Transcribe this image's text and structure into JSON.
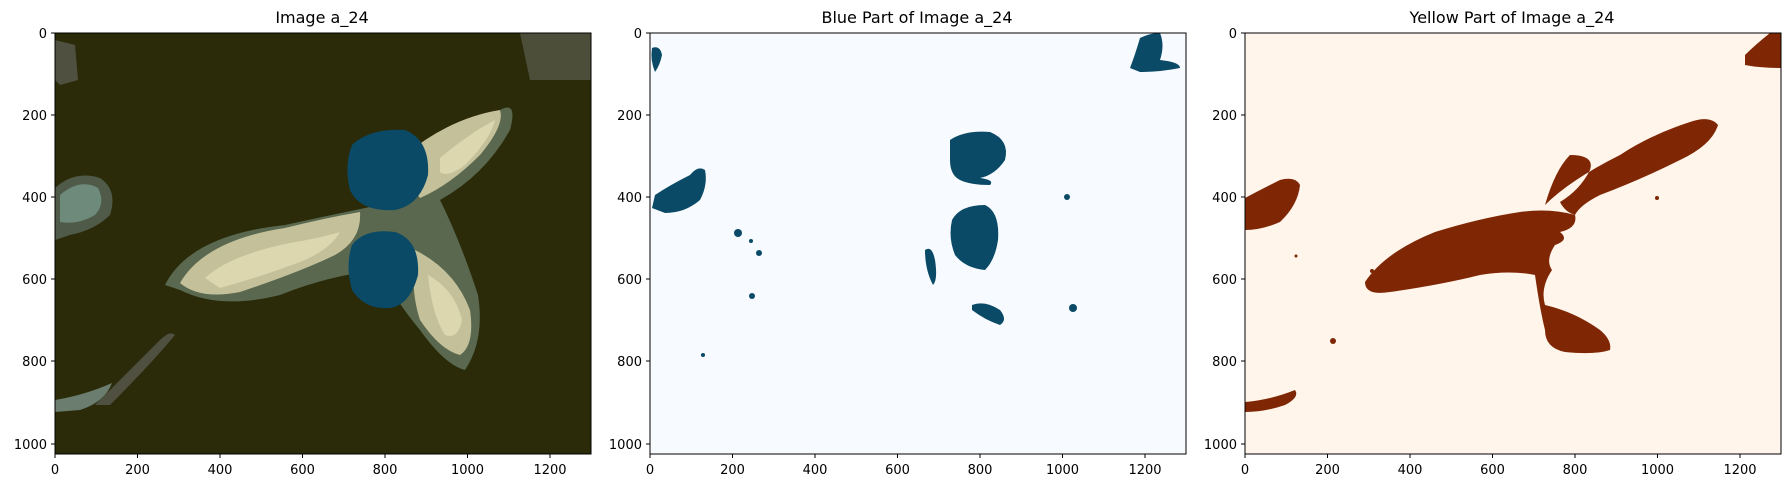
{
  "panels": [
    {
      "title": "Image a_24",
      "x_ticks": [
        "0",
        "200",
        "400",
        "600",
        "800",
        "1000",
        "1200"
      ],
      "y_ticks": [
        "0",
        "200",
        "400",
        "600",
        "800",
        "1000"
      ]
    },
    {
      "title": "Blue Part of Image a_24",
      "x_ticks": [
        "0",
        "200",
        "400",
        "600",
        "800",
        "1000",
        "1200"
      ],
      "y_ticks": [
        "0",
        "200",
        "400",
        "600",
        "800",
        "1000"
      ]
    },
    {
      "title": "Yellow Part of Image a_24",
      "x_ticks": [
        "0",
        "200",
        "400",
        "600",
        "800",
        "1000",
        "1200"
      ],
      "y_ticks": [
        "0",
        "200",
        "400",
        "600",
        "800",
        "1000"
      ]
    }
  ],
  "colors": {
    "dark_background": "#2b2b0a",
    "blue_region": "#0a4a67",
    "yellow_region": "#d4cba0",
    "blue_mask_background": "#f7fbff",
    "yellow_mask_background": "#fff5eb",
    "yellow_mask_fill": "#7f2704"
  }
}
